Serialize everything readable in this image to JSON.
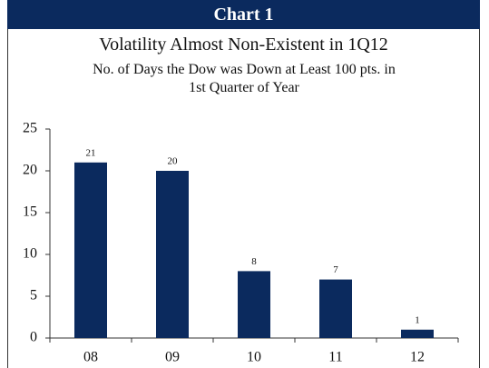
{
  "chart_data": {
    "type": "bar",
    "header": "Chart 1",
    "title": "Volatility Almost Non-Existent in 1Q12",
    "subtitle": "No. of Days the Dow was Down at Least 100 pts. in 1st Quarter of Year",
    "categories": [
      "08",
      "09",
      "10",
      "11",
      "12"
    ],
    "values": [
      21,
      20,
      8,
      7,
      1
    ],
    "color": "#0b2a5e",
    "ylim": [
      0,
      25
    ],
    "yticks": [
      0,
      5,
      10,
      15,
      20,
      25
    ],
    "grid": false
  }
}
